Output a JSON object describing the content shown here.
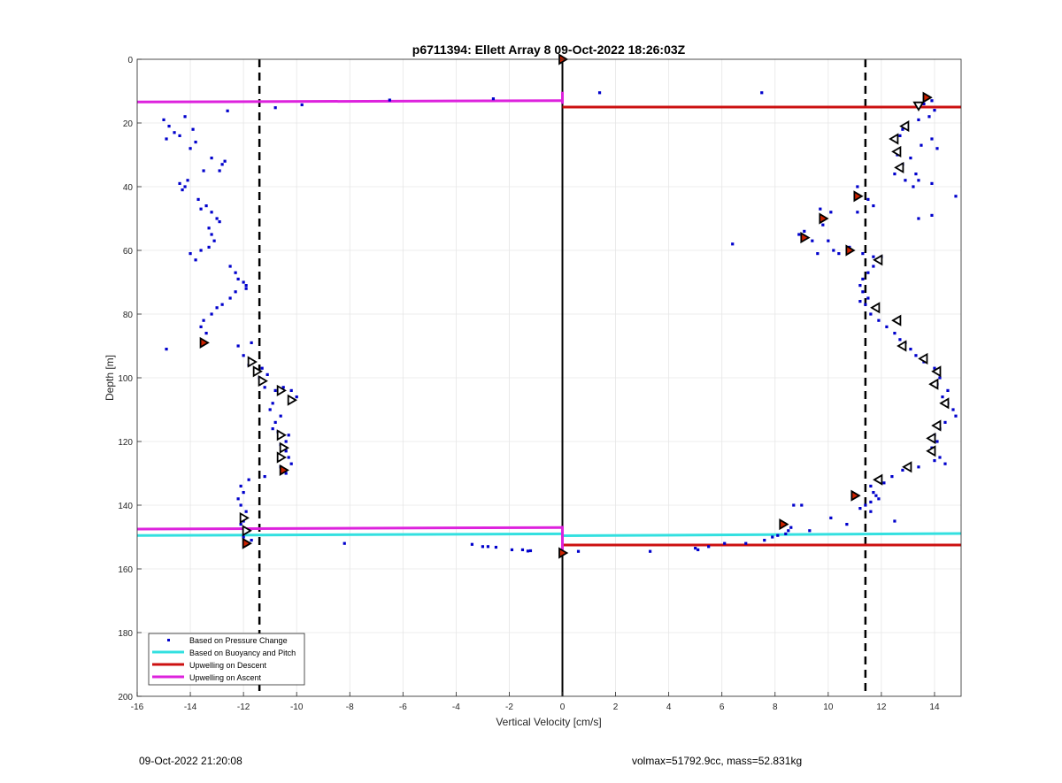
{
  "footer": {
    "timestamp": "09-Oct-2022 21:20:08",
    "info": "volmax=51792.9cc, mass=52.831kg"
  },
  "colors": {
    "pressure": "#0000cc",
    "buoyancy": "#33e0e0",
    "descent": "#cc1111",
    "ascent": "#dd22dd",
    "triangle_fill": "#cc2200"
  },
  "chart_data": {
    "type": "scatter",
    "title": "p6711394: Ellett Array 8 09-Oct-2022 18:26:03Z",
    "xlabel": "Vertical Velocity [cm/s]",
    "ylabel": "Depth [m]",
    "xlim": [
      -16,
      15
    ],
    "ylim": [
      0,
      200
    ],
    "y_reversed": true,
    "grid": true,
    "xticks": [
      -16,
      -14,
      -12,
      -10,
      -8,
      -6,
      -4,
      -2,
      0,
      2,
      4,
      6,
      8,
      10,
      12,
      14
    ],
    "yticks": [
      0,
      20,
      40,
      60,
      80,
      100,
      120,
      140,
      160,
      180,
      200
    ],
    "legend_position": "bottom-left",
    "vertical_lines": [
      {
        "x": 0,
        "style": "solid"
      },
      {
        "x": -11.4,
        "style": "dashed"
      },
      {
        "x": 11.4,
        "style": "dashed"
      }
    ],
    "series": [
      {
        "name": "Based on Pressure Change",
        "style": "points",
        "points": [
          [
            -15.0,
            19
          ],
          [
            -14.8,
            21
          ],
          [
            -14.6,
            23
          ],
          [
            -14.2,
            18
          ],
          [
            -14.9,
            25
          ],
          [
            -14.4,
            24
          ],
          [
            -13.9,
            22
          ],
          [
            -14.0,
            28
          ],
          [
            -13.8,
            26
          ],
          [
            -13.2,
            31
          ],
          [
            -12.8,
            33
          ],
          [
            -12.7,
            32
          ],
          [
            -13.5,
            35
          ],
          [
            -12.9,
            35
          ],
          [
            -14.1,
            38
          ],
          [
            -14.2,
            40
          ],
          [
            -14.4,
            39
          ],
          [
            -14.3,
            41
          ],
          [
            -13.7,
            44
          ],
          [
            -13.4,
            46
          ],
          [
            -13.6,
            47
          ],
          [
            -13.2,
            48
          ],
          [
            -13.0,
            50
          ],
          [
            -12.9,
            51
          ],
          [
            -13.3,
            53
          ],
          [
            -13.2,
            55
          ],
          [
            -13.1,
            57
          ],
          [
            -13.3,
            59
          ],
          [
            -13.6,
            60
          ],
          [
            -14.0,
            61
          ],
          [
            -13.8,
            63
          ],
          [
            -12.5,
            65
          ],
          [
            -12.3,
            67
          ],
          [
            -12.2,
            69
          ],
          [
            -12.0,
            70
          ],
          [
            -11.9,
            71
          ],
          [
            -11.9,
            72
          ],
          [
            -12.3,
            73
          ],
          [
            -12.5,
            75
          ],
          [
            -12.8,
            77
          ],
          [
            -13.0,
            78
          ],
          [
            -13.2,
            80
          ],
          [
            -13.5,
            82
          ],
          [
            -13.6,
            84
          ],
          [
            -13.4,
            86
          ],
          [
            -14.9,
            91
          ],
          [
            -12.2,
            90
          ],
          [
            -11.7,
            89
          ],
          [
            -12.0,
            93
          ],
          [
            -11.8,
            96
          ],
          [
            -11.3,
            97
          ],
          [
            -11.1,
            99
          ],
          [
            -11.4,
            100
          ],
          [
            -11.2,
            103
          ],
          [
            -10.8,
            104
          ],
          [
            -10.5,
            103
          ],
          [
            -10.2,
            104
          ],
          [
            -10.0,
            106
          ],
          [
            -10.2,
            107
          ],
          [
            -10.9,
            108
          ],
          [
            -11.0,
            110
          ],
          [
            -10.6,
            112
          ],
          [
            -10.8,
            114
          ],
          [
            -10.9,
            116
          ],
          [
            -10.7,
            117
          ],
          [
            -10.3,
            118
          ],
          [
            -10.4,
            120
          ],
          [
            -10.6,
            121
          ],
          [
            -10.4,
            123
          ],
          [
            -10.3,
            125
          ],
          [
            -10.2,
            127
          ],
          [
            -10.6,
            128
          ],
          [
            -10.4,
            130
          ],
          [
            -11.2,
            131
          ],
          [
            -11.8,
            132
          ],
          [
            -12.1,
            134
          ],
          [
            -12.0,
            136
          ],
          [
            -12.2,
            138
          ],
          [
            -12.1,
            140
          ],
          [
            -11.9,
            142
          ],
          [
            -12.0,
            145
          ],
          [
            -12.1,
            146
          ],
          [
            -11.8,
            148
          ],
          [
            -12.0,
            150
          ],
          [
            -11.7,
            151
          ],
          [
            -6.5,
            12.8
          ],
          [
            -2.6,
            12.4
          ],
          [
            -9.8,
            14.3
          ],
          [
            -10.8,
            15.2
          ],
          [
            -12.6,
            16.2
          ],
          [
            -8.2,
            152
          ],
          [
            -3.4,
            152.3
          ],
          [
            -3.0,
            153
          ],
          [
            -2.8,
            153
          ],
          [
            -2.5,
            153.2
          ],
          [
            -1.9,
            154
          ],
          [
            -1.5,
            154
          ],
          [
            -1.3,
            154.4
          ],
          [
            -1.2,
            154.3
          ],
          [
            0.6,
            154.5
          ],
          [
            1.4,
            10.5
          ],
          [
            7.5,
            10.5
          ],
          [
            13.9,
            13
          ],
          [
            13.6,
            14
          ],
          [
            14.0,
            16
          ],
          [
            13.8,
            18
          ],
          [
            13.4,
            19
          ],
          [
            12.8,
            22
          ],
          [
            12.7,
            24
          ],
          [
            13.9,
            25
          ],
          [
            13.5,
            27
          ],
          [
            14.1,
            28
          ],
          [
            12.6,
            30
          ],
          [
            13.1,
            31
          ],
          [
            12.8,
            33
          ],
          [
            13.3,
            36
          ],
          [
            12.5,
            36
          ],
          [
            12.9,
            38
          ],
          [
            13.4,
            38
          ],
          [
            13.2,
            40
          ],
          [
            13.9,
            39
          ],
          [
            14.8,
            43
          ],
          [
            11.1,
            40
          ],
          [
            11.5,
            44
          ],
          [
            11.7,
            46
          ],
          [
            11.1,
            48
          ],
          [
            13.4,
            50
          ],
          [
            13.9,
            49
          ],
          [
            9.7,
            47
          ],
          [
            9.8,
            52
          ],
          [
            10.1,
            48
          ],
          [
            9.1,
            54
          ],
          [
            8.9,
            55
          ],
          [
            9.4,
            57
          ],
          [
            10.0,
            57
          ],
          [
            6.4,
            58
          ],
          [
            10.2,
            60
          ],
          [
            10.8,
            59
          ],
          [
            9.6,
            61
          ],
          [
            10.4,
            61
          ],
          [
            11.3,
            61
          ],
          [
            11.7,
            62
          ],
          [
            12.0,
            62
          ],
          [
            11.7,
            65
          ],
          [
            11.5,
            67
          ],
          [
            11.3,
            69
          ],
          [
            11.2,
            71
          ],
          [
            11.3,
            73
          ],
          [
            11.5,
            75
          ],
          [
            11.2,
            76
          ],
          [
            11.4,
            77
          ],
          [
            11.6,
            80
          ],
          [
            11.9,
            82
          ],
          [
            12.2,
            84
          ],
          [
            12.5,
            86
          ],
          [
            12.7,
            88
          ],
          [
            12.9,
            89
          ],
          [
            13.1,
            91
          ],
          [
            13.3,
            93
          ],
          [
            13.6,
            95
          ],
          [
            14.0,
            97
          ],
          [
            14.2,
            100
          ],
          [
            14.1,
            102
          ],
          [
            14.5,
            104
          ],
          [
            14.3,
            106
          ],
          [
            14.5,
            108
          ],
          [
            14.7,
            110
          ],
          [
            14.8,
            112
          ],
          [
            14.4,
            114
          ],
          [
            14.2,
            116
          ],
          [
            14.0,
            118
          ],
          [
            14.1,
            120
          ],
          [
            13.9,
            122
          ],
          [
            14.2,
            125
          ],
          [
            14.4,
            127
          ],
          [
            14.0,
            126
          ],
          [
            13.4,
            128
          ],
          [
            12.8,
            129
          ],
          [
            12.4,
            131
          ],
          [
            12.1,
            133
          ],
          [
            11.6,
            134
          ],
          [
            11.7,
            136
          ],
          [
            11.8,
            137
          ],
          [
            11.9,
            138
          ],
          [
            11.6,
            139
          ],
          [
            11.4,
            140
          ],
          [
            11.2,
            141
          ],
          [
            8.7,
            140
          ],
          [
            9.0,
            140
          ],
          [
            10.1,
            144
          ],
          [
            10.7,
            146
          ],
          [
            11.6,
            142
          ],
          [
            12.5,
            145
          ],
          [
            9.3,
            148
          ],
          [
            8.6,
            147
          ],
          [
            8.5,
            148
          ],
          [
            8.4,
            149
          ],
          [
            8.1,
            149.5
          ],
          [
            7.9,
            150
          ],
          [
            7.6,
            151
          ],
          [
            6.9,
            152
          ],
          [
            6.1,
            152
          ],
          [
            5.5,
            153
          ],
          [
            5.0,
            153.5
          ],
          [
            5.1,
            154
          ],
          [
            3.3,
            154.5
          ]
        ]
      },
      {
        "name": "Based on Buoyancy and Pitch",
        "style": "line",
        "segments": [
          [
            [
              -16,
              149.5
            ],
            [
              0,
              149.0
            ]
          ],
          [
            [
              0,
              149.6
            ],
            [
              15,
              148.9
            ]
          ]
        ]
      },
      {
        "name": "Upwelling on Descent",
        "style": "line",
        "segments": [
          [
            [
              0,
              15.0
            ],
            [
              15,
              15.0
            ]
          ],
          [
            [
              0,
              152.5
            ],
            [
              15,
              152.5
            ]
          ]
        ]
      },
      {
        "name": "Upwelling on Ascent",
        "style": "line",
        "segments": [
          [
            [
              -16,
              13.4
            ],
            [
              0,
              13.0
            ]
          ],
          [
            [
              -16,
              147.5
            ],
            [
              0,
              147.0
            ]
          ],
          [
            [
              0,
              10.2
            ],
            [
              0,
              14.0
            ]
          ],
          [
            [
              0,
              146.5
            ],
            [
              0,
              155.0
            ]
          ]
        ]
      },
      {
        "style": "markers",
        "markers": [
          {
            "x": 0,
            "y": 0,
            "dir": "right",
            "fill": true
          },
          {
            "x": 13.7,
            "y": 12,
            "dir": "right",
            "fill": true
          },
          {
            "x": 13.4,
            "y": 14.5,
            "dir": "down",
            "fill": false
          },
          {
            "x": 12.9,
            "y": 21,
            "dir": "left",
            "fill": false
          },
          {
            "x": 12.5,
            "y": 25,
            "dir": "left",
            "fill": false
          },
          {
            "x": 12.6,
            "y": 29,
            "dir": "left",
            "fill": false
          },
          {
            "x": 12.7,
            "y": 34,
            "dir": "left",
            "fill": false
          },
          {
            "x": 11.1,
            "y": 43,
            "dir": "right",
            "fill": true
          },
          {
            "x": 9.8,
            "y": 50,
            "dir": "right",
            "fill": true
          },
          {
            "x": 9.1,
            "y": 56,
            "dir": "right",
            "fill": true
          },
          {
            "x": 10.8,
            "y": 60,
            "dir": "right",
            "fill": true
          },
          {
            "x": 11.9,
            "y": 63,
            "dir": "left",
            "fill": false
          },
          {
            "x": 11.8,
            "y": 78,
            "dir": "left",
            "fill": false
          },
          {
            "x": 12.6,
            "y": 82,
            "dir": "left",
            "fill": false
          },
          {
            "x": 12.8,
            "y": 90,
            "dir": "left",
            "fill": false
          },
          {
            "x": 13.6,
            "y": 94,
            "dir": "left",
            "fill": false
          },
          {
            "x": 14.1,
            "y": 98,
            "dir": "left",
            "fill": false
          },
          {
            "x": 14.0,
            "y": 102,
            "dir": "left",
            "fill": false
          },
          {
            "x": 14.4,
            "y": 108,
            "dir": "left",
            "fill": false
          },
          {
            "x": 14.1,
            "y": 115,
            "dir": "left",
            "fill": false
          },
          {
            "x": 13.9,
            "y": 119,
            "dir": "left",
            "fill": false
          },
          {
            "x": 13.9,
            "y": 123,
            "dir": "left",
            "fill": false
          },
          {
            "x": 13.0,
            "y": 128,
            "dir": "left",
            "fill": false
          },
          {
            "x": 11.9,
            "y": 132,
            "dir": "left",
            "fill": false
          },
          {
            "x": 11.0,
            "y": 137,
            "dir": "right",
            "fill": true
          },
          {
            "x": 8.3,
            "y": 146,
            "dir": "right",
            "fill": true
          },
          {
            "x": 0,
            "y": 155,
            "dir": "right",
            "fill": true
          },
          {
            "x": -13.5,
            "y": 89,
            "dir": "right",
            "fill": true
          },
          {
            "x": -11.7,
            "y": 95,
            "dir": "right",
            "fill": false
          },
          {
            "x": -11.5,
            "y": 98,
            "dir": "right",
            "fill": false
          },
          {
            "x": -11.3,
            "y": 101,
            "dir": "right",
            "fill": false
          },
          {
            "x": -10.6,
            "y": 104,
            "dir": "right",
            "fill": false
          },
          {
            "x": -10.2,
            "y": 107,
            "dir": "right",
            "fill": false
          },
          {
            "x": -10.6,
            "y": 118,
            "dir": "right",
            "fill": false
          },
          {
            "x": -10.5,
            "y": 122,
            "dir": "right",
            "fill": false
          },
          {
            "x": -10.6,
            "y": 125,
            "dir": "right",
            "fill": false
          },
          {
            "x": -10.5,
            "y": 129,
            "dir": "right",
            "fill": true
          },
          {
            "x": -12.0,
            "y": 144,
            "dir": "right",
            "fill": false
          },
          {
            "x": -11.9,
            "y": 148,
            "dir": "right",
            "fill": false
          },
          {
            "x": -11.9,
            "y": 152,
            "dir": "right",
            "fill": true
          }
        ]
      }
    ]
  }
}
